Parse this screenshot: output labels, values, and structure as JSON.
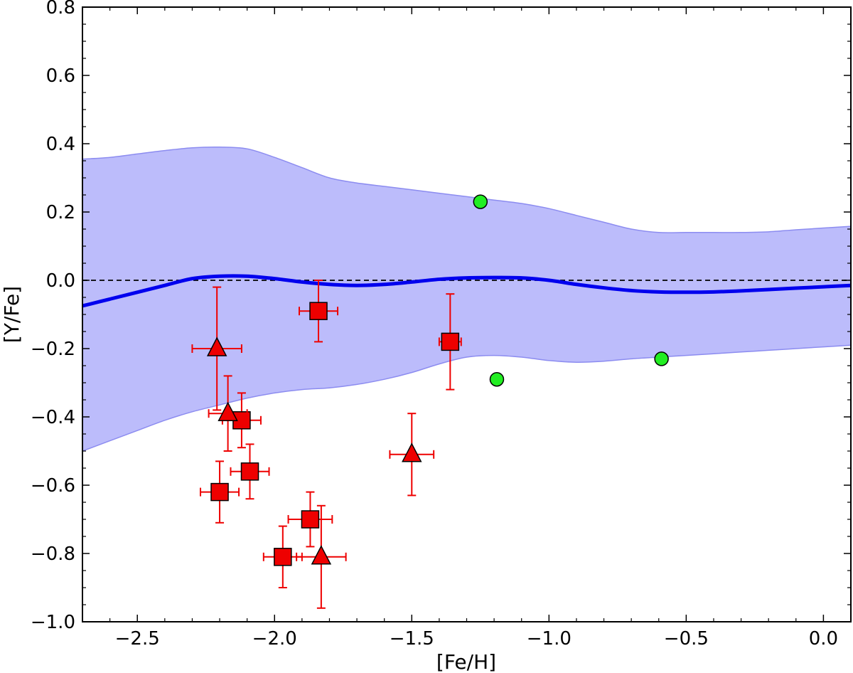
{
  "chart_data": {
    "type": "scatter",
    "title": "",
    "xlabel": "[Fe/H]",
    "ylabel": "[Y/Fe]",
    "xlim": [
      -2.7,
      0.1
    ],
    "ylim": [
      -1.0,
      0.8
    ],
    "x_ticks": [
      -2.5,
      -2.0,
      -1.5,
      -1.0,
      -0.5,
      0.0
    ],
    "x_tick_labels": [
      "−2.5",
      "−2.0",
      "−1.5",
      "−1.0",
      "−0.5",
      "0.0"
    ],
    "y_ticks": [
      -1.0,
      -0.8,
      -0.6,
      -0.4,
      -0.2,
      0.0,
      0.2,
      0.4,
      0.6,
      0.8
    ],
    "y_tick_labels": [
      "−1.0",
      "−0.8",
      "−0.6",
      "−0.4",
      "−0.2",
      "0.0",
      "0.2",
      "0.4",
      "0.6",
      "0.8"
    ],
    "reference_line": {
      "y": 0.0,
      "style": "dashed",
      "color": "#000000"
    },
    "model": {
      "name": "model mean",
      "color": "#0000ee",
      "band_color": "#bcbcfb",
      "x": [
        -2.7,
        -2.6,
        -2.5,
        -2.4,
        -2.3,
        -2.2,
        -2.1,
        -2.0,
        -1.9,
        -1.8,
        -1.7,
        -1.6,
        -1.5,
        -1.4,
        -1.3,
        -1.2,
        -1.1,
        -1.0,
        -0.9,
        -0.8,
        -0.7,
        -0.6,
        -0.5,
        -0.4,
        -0.3,
        -0.2,
        -0.1,
        0.0,
        0.1
      ],
      "mean": [
        -0.075,
        -0.055,
        -0.035,
        -0.015,
        0.005,
        0.012,
        0.012,
        0.005,
        -0.005,
        -0.012,
        -0.015,
        -0.012,
        -0.005,
        0.003,
        0.007,
        0.008,
        0.007,
        0.0,
        -0.012,
        -0.022,
        -0.03,
        -0.034,
        -0.035,
        -0.034,
        -0.031,
        -0.027,
        -0.023,
        -0.019,
        -0.015
      ],
      "upper": [
        0.355,
        0.36,
        0.37,
        0.38,
        0.388,
        0.39,
        0.385,
        0.36,
        0.33,
        0.3,
        0.285,
        0.275,
        0.265,
        0.255,
        0.245,
        0.235,
        0.225,
        0.21,
        0.19,
        0.17,
        0.15,
        0.14,
        0.14,
        0.14,
        0.14,
        0.142,
        0.148,
        0.153,
        0.158
      ],
      "lower": [
        -0.5,
        -0.47,
        -0.44,
        -0.41,
        -0.385,
        -0.365,
        -0.345,
        -0.33,
        -0.32,
        -0.315,
        -0.305,
        -0.29,
        -0.27,
        -0.245,
        -0.225,
        -0.22,
        -0.225,
        -0.235,
        -0.24,
        -0.237,
        -0.23,
        -0.225,
        -0.22,
        -0.215,
        -0.21,
        -0.205,
        -0.2,
        -0.195,
        -0.19
      ]
    },
    "series": [
      {
        "name": "squares",
        "marker": "square",
        "color": "#ee0000",
        "points": [
          {
            "x": -1.84,
            "y": -0.09,
            "xerr": 0.07,
            "yerr": 0.09
          },
          {
            "x": -1.36,
            "y": -0.18,
            "xerr": 0.04,
            "yerr": 0.14
          },
          {
            "x": -2.12,
            "y": -0.41,
            "xerr": 0.07,
            "yerr": 0.08
          },
          {
            "x": -2.09,
            "y": -0.56,
            "xerr": 0.07,
            "yerr": 0.08
          },
          {
            "x": -2.2,
            "y": -0.62,
            "xerr": 0.07,
            "yerr": 0.09
          },
          {
            "x": -1.87,
            "y": -0.7,
            "xerr": 0.08,
            "yerr": 0.08
          },
          {
            "x": -1.97,
            "y": -0.81,
            "xerr": 0.07,
            "yerr": 0.09
          }
        ]
      },
      {
        "name": "triangles",
        "marker": "triangle",
        "color": "#ee0000",
        "points": [
          {
            "x": -2.21,
            "y": -0.2,
            "xerr": 0.09,
            "yerr": 0.18
          },
          {
            "x": -2.17,
            "y": -0.39,
            "xerr": 0.07,
            "yerr": 0.11
          },
          {
            "x": -1.5,
            "y": -0.51,
            "xerr": 0.08,
            "yerr": 0.12
          },
          {
            "x": -1.83,
            "y": -0.81,
            "xerr": 0.09,
            "yerr": 0.15
          }
        ]
      },
      {
        "name": "circles",
        "marker": "circle",
        "color": "#22ee22",
        "points": [
          {
            "x": -1.25,
            "y": 0.23
          },
          {
            "x": -1.19,
            "y": -0.29
          },
          {
            "x": -0.59,
            "y": -0.23
          }
        ]
      }
    ]
  }
}
